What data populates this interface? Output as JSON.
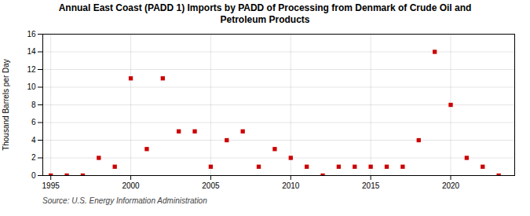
{
  "chart_data": {
    "type": "scatter",
    "title": "Annual East Coast (PADD 1) Imports by PADD of Processing from Denmark of Crude Oil and\nPetroleum Products",
    "ylabel": "Thousand Barrels per Day",
    "annotations": [
      "Source: U.S. Energy Information Administration"
    ],
    "x": [
      1995,
      1996,
      1997,
      1998,
      1999,
      2000,
      2001,
      2002,
      2003,
      2004,
      2005,
      2006,
      2007,
      2008,
      2009,
      2010,
      2011,
      2012,
      2013,
      2014,
      2015,
      2016,
      2017,
      2018,
      2019,
      2020,
      2021,
      2022,
      2023
    ],
    "values": [
      0,
      0,
      0,
      2,
      1,
      11,
      3,
      11,
      5,
      5,
      1,
      4,
      5,
      1,
      3,
      2,
      1,
      0,
      1,
      1,
      1,
      1,
      1,
      4,
      14,
      8,
      2,
      1,
      0
    ],
    "color": "#cc0000",
    "marker": "square",
    "xlim": [
      1994.5,
      2024
    ],
    "ylim": [
      0,
      16
    ],
    "xticks": [
      1995,
      2000,
      2005,
      2010,
      2015,
      2020
    ],
    "yticks": [
      0,
      2,
      4,
      6,
      8,
      10,
      12,
      14,
      16
    ],
    "grid": true
  }
}
